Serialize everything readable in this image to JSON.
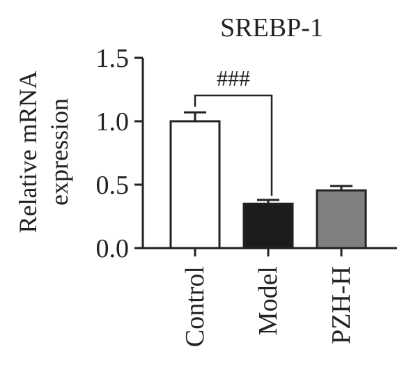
{
  "chart_data": {
    "type": "bar",
    "title": "SREBP-1",
    "ylabel_lines": [
      "Relative mRNA",
      "expression"
    ],
    "xlabel": "",
    "ylim": [
      0,
      1.5
    ],
    "yticks": [
      "0.0",
      "0.5",
      "1.0",
      "1.5"
    ],
    "ytick_values": [
      0,
      0.5,
      1.0,
      1.5
    ],
    "categories": [
      "Control",
      "Model",
      "PZH-H"
    ],
    "values": [
      1.0,
      0.35,
      0.455
    ],
    "errors": [
      0.07,
      0.03,
      0.035
    ],
    "bar_colors": [
      "#ffffff",
      "#1c1c1c",
      "#808080"
    ],
    "annotation": {
      "text": "###",
      "from": "Control",
      "to": "Model"
    },
    "grid": false,
    "legend": "none"
  }
}
